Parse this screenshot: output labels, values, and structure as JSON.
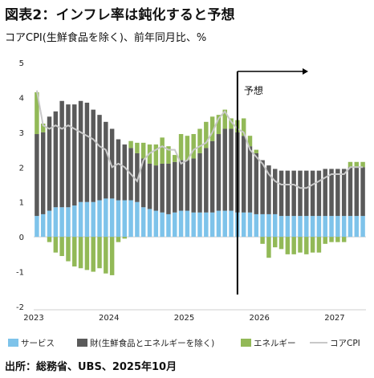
{
  "title": "図表2：インフレ率は鈍化すると予想",
  "subtitle": "コアCPI(生鮮食品を除く)、前年同月比、%",
  "source": "出所：総務省、UBS、2025年10月",
  "chart_data": {
    "type": "bar",
    "stacked": true,
    "annotation": "予想",
    "ylim": [
      -2,
      5
    ],
    "yticks": [
      "5",
      "4",
      "3",
      "2",
      "1",
      "0",
      "-1",
      "-2"
    ],
    "xticks": [
      "2023",
      "2024",
      "2025",
      "2026",
      "2027"
    ],
    "forecast_start_index": 33,
    "colors": {
      "services": "#7ec3ea",
      "goods": "#5a5a5a",
      "energy": "#92b957",
      "core": "#c8c8c8",
      "forecast_line": "#000000",
      "axis": "#cfcfcf"
    },
    "series": [
      {
        "name": "サービス",
        "values": [
          0.6,
          0.65,
          0.75,
          0.85,
          0.85,
          0.85,
          0.9,
          1.0,
          1.0,
          1.0,
          1.05,
          1.1,
          1.1,
          1.05,
          1.05,
          1.05,
          1.0,
          0.85,
          0.8,
          0.75,
          0.7,
          0.65,
          0.7,
          0.75,
          0.75,
          0.7,
          0.7,
          0.7,
          0.7,
          0.75,
          0.75,
          0.75,
          0.7,
          0.7,
          0.7,
          0.65,
          0.65,
          0.65,
          0.65,
          0.6,
          0.6,
          0.6,
          0.6,
          0.6,
          0.6,
          0.6,
          0.6,
          0.6,
          0.6,
          0.6,
          0.6,
          0.6,
          0.6
        ]
      },
      {
        "name": "財(生鮮食品とエネルギーを除く)",
        "values": [
          2.35,
          2.35,
          2.7,
          2.75,
          3.05,
          2.95,
          2.9,
          2.9,
          2.85,
          2.65,
          2.45,
          2.2,
          2.0,
          1.75,
          1.6,
          1.5,
          1.4,
          1.4,
          1.3,
          1.3,
          1.4,
          1.45,
          1.45,
          1.45,
          1.45,
          1.55,
          1.7,
          1.85,
          2.05,
          2.2,
          2.35,
          2.35,
          2.3,
          2.2,
          1.9,
          1.75,
          1.55,
          1.4,
          1.3,
          1.3,
          1.3,
          1.3,
          1.3,
          1.3,
          1.3,
          1.3,
          1.35,
          1.35,
          1.35,
          1.35,
          1.4,
          1.4,
          1.4
        ]
      },
      {
        "name": "エネルギー",
        "values": [
          1.2,
          0.25,
          -0.15,
          -0.45,
          -0.55,
          -0.7,
          -0.85,
          -0.9,
          -0.95,
          -1.0,
          -0.9,
          -1.05,
          -1.1,
          -0.15,
          -0.05,
          0.2,
          0.3,
          0.45,
          0.55,
          0.6,
          0.75,
          0.5,
          0.2,
          0.75,
          0.7,
          0.7,
          0.7,
          0.75,
          0.7,
          0.55,
          0.55,
          0.3,
          0.35,
          0.5,
          0.3,
          0.1,
          -0.2,
          -0.6,
          -0.3,
          -0.35,
          -0.5,
          -0.5,
          -0.45,
          -0.5,
          -0.45,
          -0.45,
          -0.2,
          -0.15,
          -0.15,
          -0.15,
          0.15,
          0.15,
          0.15
        ]
      },
      {
        "name": "コアCPI",
        "type": "line",
        "values": [
          4.2,
          3.2,
          3.1,
          3.2,
          3.1,
          3.2,
          3.1,
          3.0,
          2.9,
          2.8,
          2.6,
          2.5,
          2.0,
          2.1,
          2.0,
          1.8,
          1.6,
          2.2,
          2.4,
          2.5,
          2.6,
          2.5,
          2.5,
          2.1,
          2.2,
          2.5,
          2.6,
          2.7,
          3.0,
          3.4,
          3.6,
          3.3,
          3.1,
          3.0,
          2.5,
          2.3,
          2.1,
          1.8,
          1.6,
          1.5,
          1.5,
          1.5,
          1.4,
          1.4,
          1.5,
          1.6,
          1.7,
          1.8,
          1.8,
          1.8,
          2.0,
          2.0,
          2.0
        ]
      }
    ]
  }
}
